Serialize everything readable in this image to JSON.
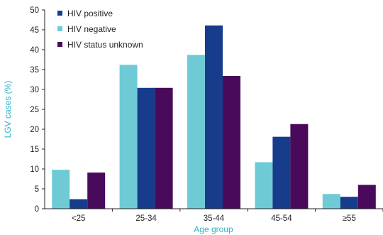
{
  "chart_data": {
    "type": "bar",
    "title": "",
    "xlabel": "Age group",
    "ylabel": "LGV cases (%)",
    "ylim": [
      0,
      50
    ],
    "yticks": [
      0,
      5,
      10,
      15,
      20,
      25,
      30,
      35,
      40,
      45,
      50
    ],
    "categories": [
      "<25",
      "25-34",
      "35-44",
      "45-54",
      "≥55"
    ],
    "series": [
      {
        "name": "HIV negative",
        "color": "#6ecbd5",
        "values": [
          9.8,
          36.2,
          38.7,
          11.7,
          3.7
        ]
      },
      {
        "name": "HIV positive",
        "color": "#173c8c",
        "values": [
          2.4,
          30.4,
          46.1,
          18.1,
          3.0
        ]
      },
      {
        "name": "HIV status unknown",
        "color": "#4a0a5c",
        "values": [
          9.1,
          30.4,
          33.4,
          21.3,
          6.0
        ]
      }
    ],
    "legend": {
      "placement": "top-left",
      "order": [
        "HIV positive",
        "HIV negative",
        "HIV status unknown"
      ]
    },
    "grid": false
  }
}
